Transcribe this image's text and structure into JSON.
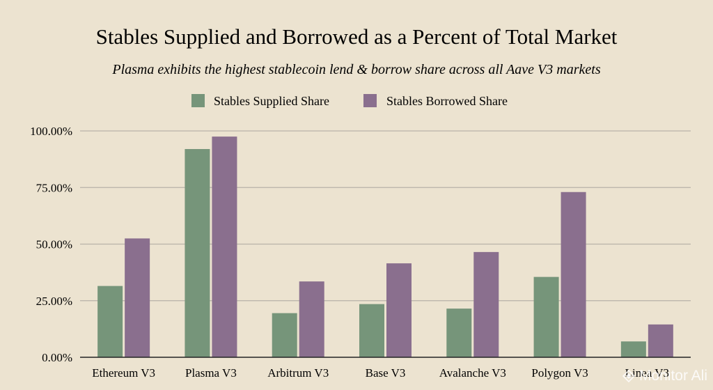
{
  "chart_data": {
    "type": "bar",
    "title": "Stables Supplied and Borrowed as a Percent of Total Market",
    "subtitle": "Plasma exhibits the highest stablecoin lend & borrow share across all Aave V3 markets",
    "categories": [
      "Ethereum V3",
      "Plasma V3",
      "Arbitrum V3",
      "Base V3",
      "Avalanche V3",
      "Polygon V3",
      "Linea V3"
    ],
    "series": [
      {
        "name": "Stables Supplied Share",
        "color": "#76957a",
        "values": [
          31.5,
          92.0,
          19.5,
          23.5,
          21.5,
          35.5,
          7.0
        ]
      },
      {
        "name": "Stables Borrowed Share",
        "color": "#8a6f8e",
        "values": [
          52.5,
          97.5,
          33.5,
          41.5,
          46.5,
          73.0,
          14.5
        ]
      }
    ],
    "ylim": [
      0,
      100
    ],
    "yticks": [
      "0.00%",
      "25.00%",
      "50.00%",
      "75.00%",
      "100.00%"
    ],
    "ytick_values": [
      0,
      25,
      50,
      75,
      100
    ],
    "grid": true,
    "legend_position": "top-center"
  },
  "watermark": {
    "text": "Monitor Ali",
    "icon": "diamond-logo-icon"
  }
}
